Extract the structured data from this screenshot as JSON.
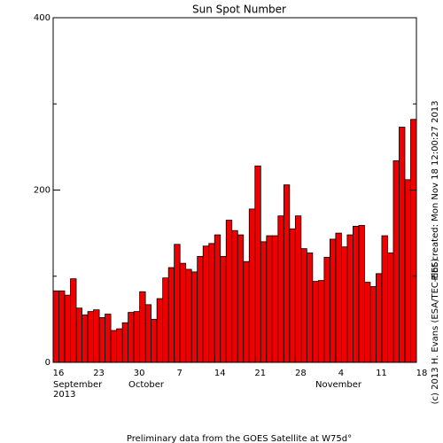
{
  "chart_data": {
    "type": "bar",
    "title": "Sun Spot Number",
    "values": [
      83,
      83,
      78,
      97,
      63,
      55,
      59,
      61,
      52,
      56,
      37,
      39,
      46,
      58,
      59,
      82,
      67,
      50,
      74,
      98,
      110,
      137,
      115,
      108,
      105,
      123,
      135,
      138,
      148,
      123,
      165,
      153,
      148,
      117,
      178,
      228,
      140,
      147,
      147,
      170,
      206,
      155,
      170,
      132,
      127,
      94,
      95,
      122,
      143,
      150,
      134,
      148,
      158,
      159,
      93,
      88,
      103,
      147,
      127,
      234,
      273,
      212,
      282
    ],
    "color": "#ee0000",
    "xlim": [
      0,
      63
    ],
    "xticks": [
      {
        "value": 0,
        "label": "16"
      },
      {
        "value": 7,
        "label": "23"
      },
      {
        "value": 14,
        "label": "30"
      },
      {
        "value": 21,
        "label": "7"
      },
      {
        "value": 28,
        "label": "14"
      },
      {
        "value": 35,
        "label": "21"
      },
      {
        "value": 42,
        "label": "28"
      },
      {
        "value": 49,
        "label": "4"
      },
      {
        "value": 56,
        "label": "11"
      },
      {
        "value": 63,
        "label": "18"
      }
    ],
    "months": [
      "September",
      "2013",
      "October",
      "November"
    ],
    "ylim": [
      0,
      400
    ],
    "yticks": [
      0,
      200,
      400
    ],
    "yminorticks": [
      100,
      300
    ],
    "side_text": "Plot created: Mon Nov 18 12:00:27 2013",
    "credit": "(c) 2013 H. Evans (ESA/TEC-EES)",
    "footer": "Preliminary data from the GOES Satellite at W75d°"
  }
}
